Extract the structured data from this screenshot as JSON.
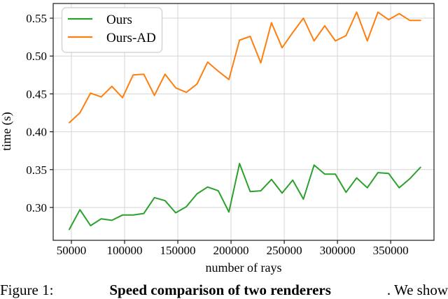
{
  "figure": {
    "caption": {
      "prefix": "Figure 1: ",
      "bold": "Speed comparison of two renderers",
      "suffix": ". We show"
    }
  },
  "chart_data": {
    "type": "line",
    "title": "",
    "xlabel": "number of rays",
    "ylabel": "time (s)",
    "xlim": [
      32900,
      390700
    ],
    "ylim": [
      0.2566,
      0.5694
    ],
    "x_ticks": [
      50000,
      100000,
      150000,
      200000,
      250000,
      300000,
      350000
    ],
    "y_ticks": [
      0.3,
      0.35,
      0.4,
      0.45,
      0.5,
      0.55
    ],
    "grid": true,
    "grid_color": "#d6d6d6",
    "spine_color": "#1a1a1a",
    "legend_position": "upper left",
    "x": [
      48000,
      58000,
      68000,
      78000,
      88000,
      98000,
      108000,
      118000,
      128000,
      138000,
      148000,
      158000,
      168000,
      178000,
      188000,
      198000,
      208000,
      218000,
      228000,
      238000,
      248000,
      258000,
      268000,
      278000,
      288000,
      298000,
      308000,
      318000,
      328000,
      338000,
      348000,
      358000,
      368000,
      378000
    ],
    "series": [
      {
        "name": "Ours",
        "color": "#2ca02c",
        "values": [
          0.271,
          0.297,
          0.276,
          0.285,
          0.283,
          0.29,
          0.29,
          0.292,
          0.313,
          0.309,
          0.293,
          0.301,
          0.318,
          0.327,
          0.322,
          0.294,
          0.358,
          0.321,
          0.322,
          0.337,
          0.319,
          0.336,
          0.311,
          0.356,
          0.344,
          0.344,
          0.32,
          0.339,
          0.326,
          0.346,
          0.345,
          0.326,
          0.338,
          0.353
        ]
      },
      {
        "name": "Ours-AD",
        "color": "#ff7f0e",
        "values": [
          0.412,
          0.425,
          0.451,
          0.446,
          0.46,
          0.445,
          0.475,
          0.476,
          0.448,
          0.476,
          0.458,
          0.452,
          0.463,
          0.492,
          0.48,
          0.469,
          0.521,
          0.526,
          0.491,
          0.544,
          0.511,
          0.531,
          0.55,
          0.52,
          0.54,
          0.52,
          0.527,
          0.558,
          0.52,
          0.558,
          0.548,
          0.556,
          0.547,
          0.547
        ]
      }
    ]
  }
}
